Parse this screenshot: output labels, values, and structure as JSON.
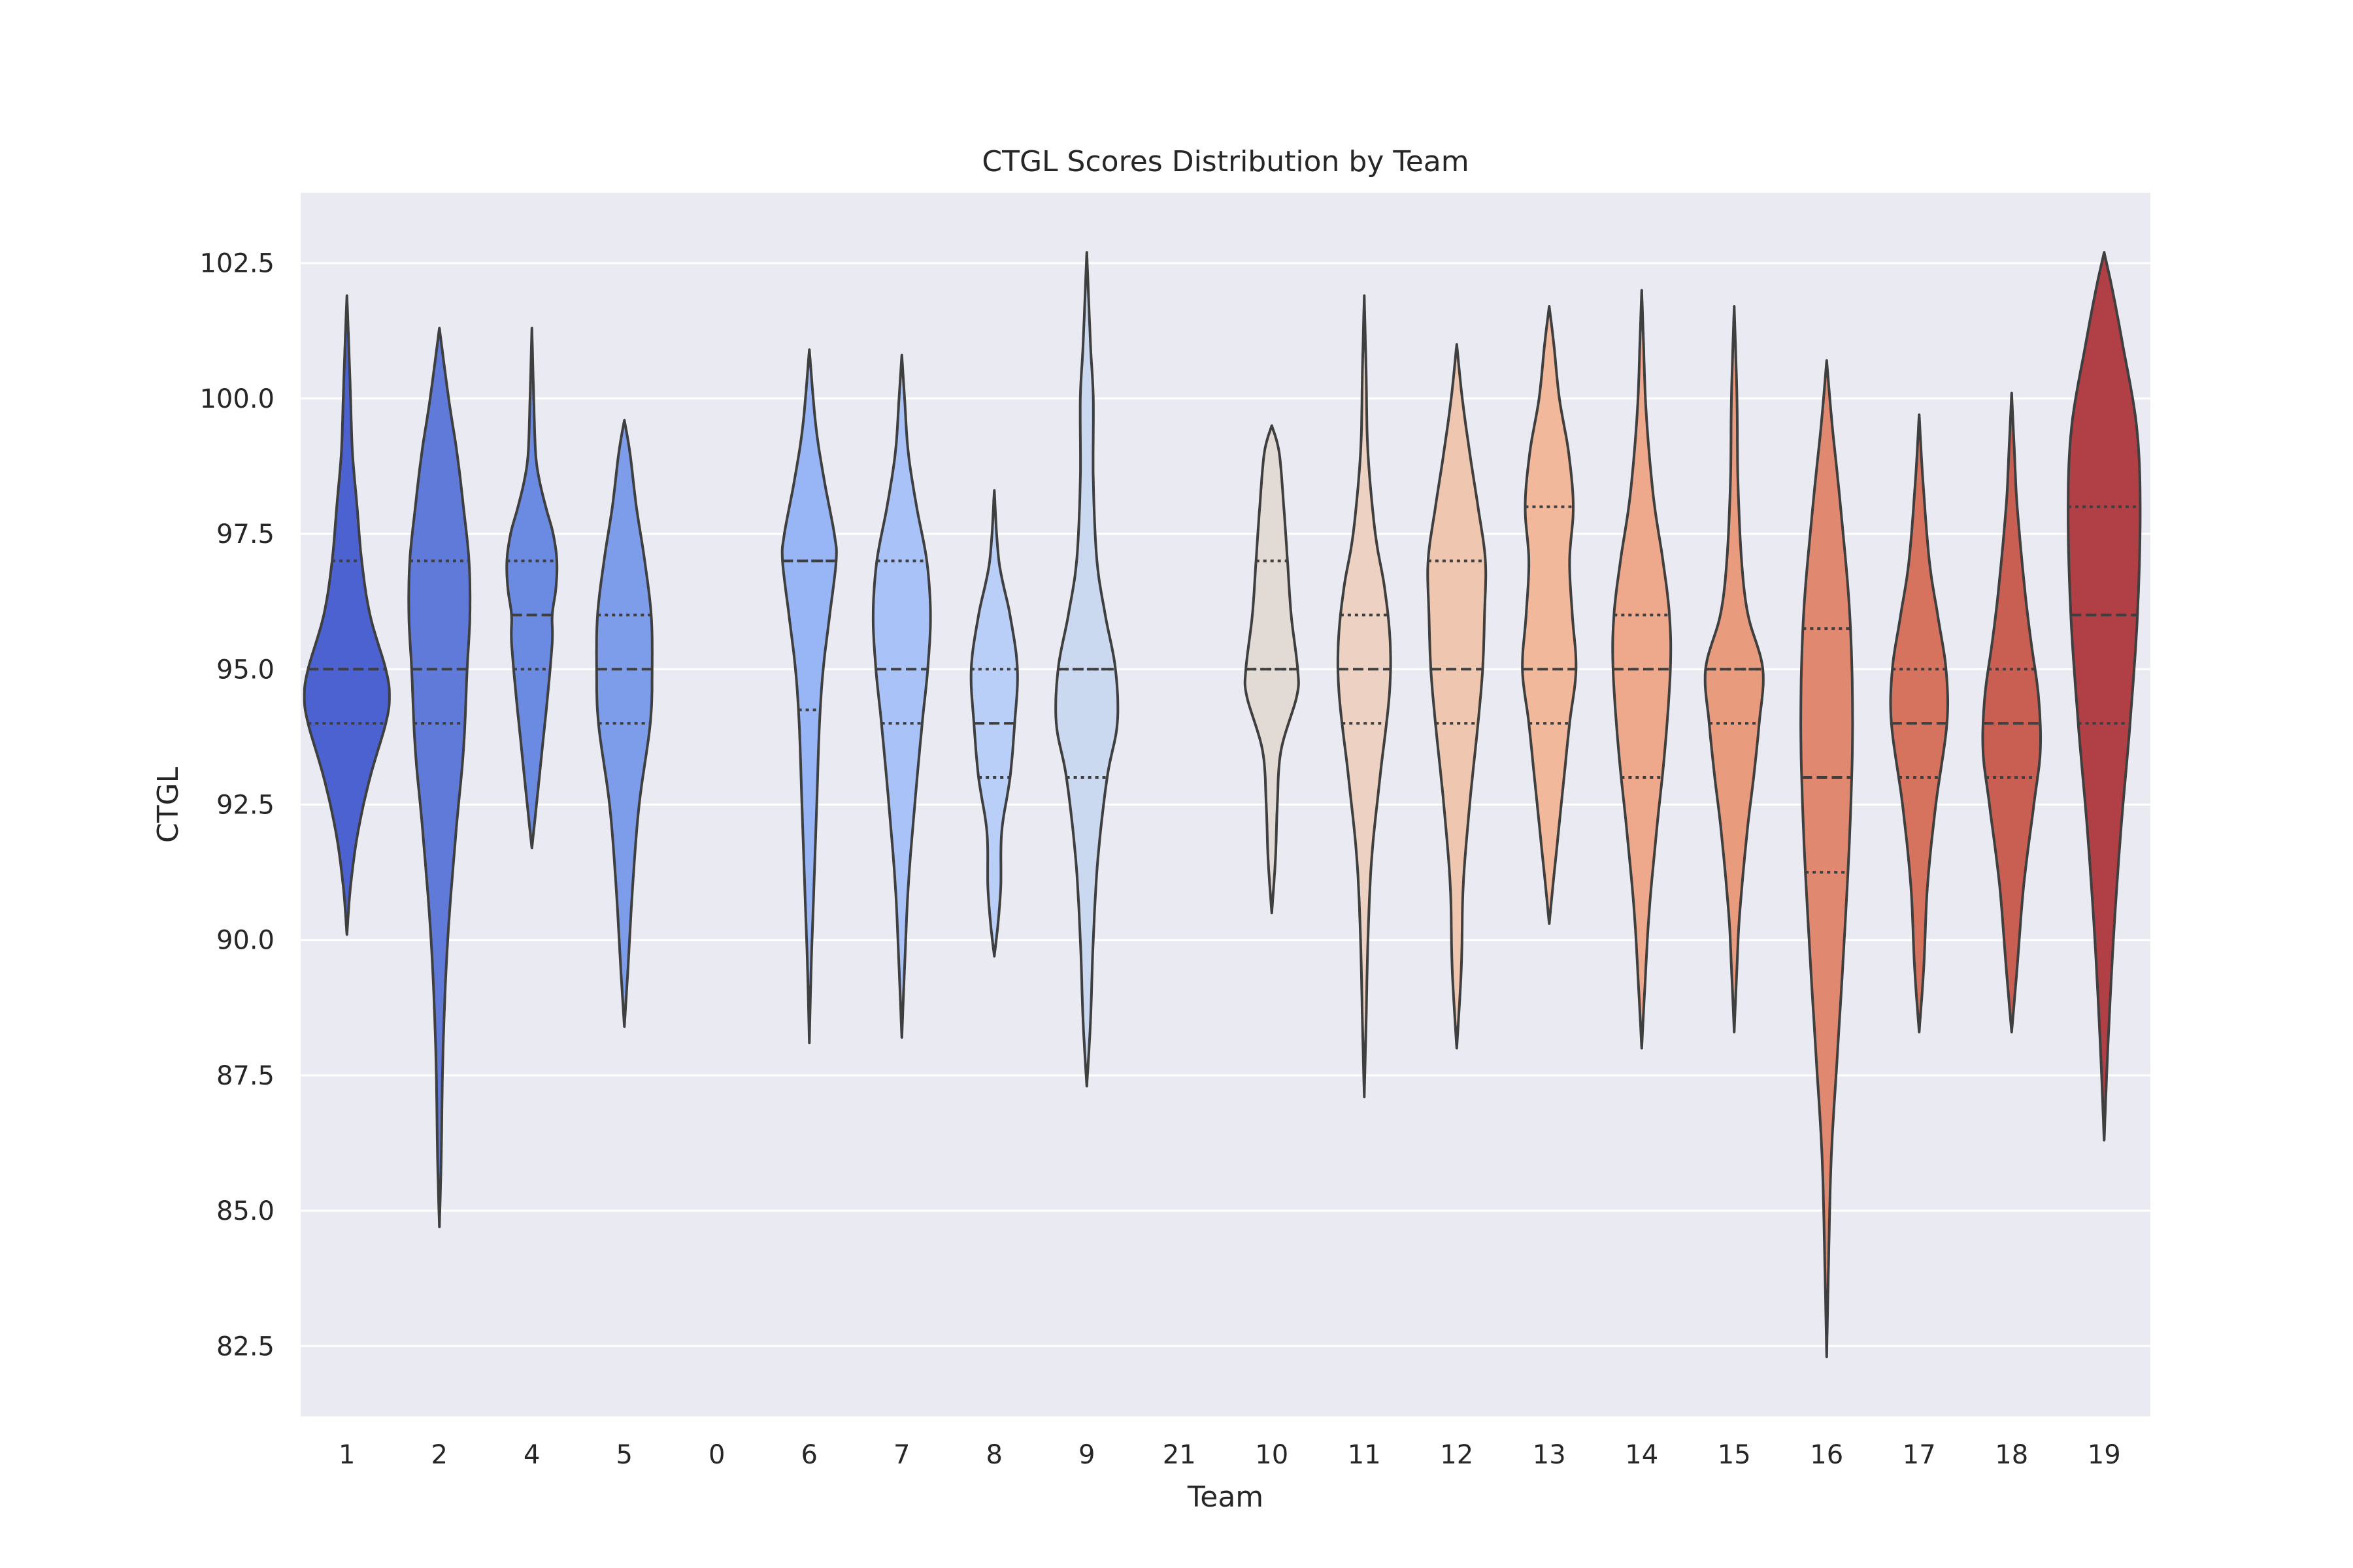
{
  "chart_data": {
    "type": "violin",
    "title": "CTGL Scores Distribution by Team",
    "xlabel": "Team",
    "ylabel": "CTGL",
    "ylim": [
      81.2,
      103.8
    ],
    "y_ticks": [
      82.5,
      85.0,
      87.5,
      90.0,
      92.5,
      95.0,
      97.5,
      100.0,
      102.5
    ],
    "y_tick_labels": [
      "82.5",
      "85.0",
      "87.5",
      "90.0",
      "92.5",
      "95.0",
      "97.5",
      "100.0",
      "102.5"
    ],
    "categories": [
      "1",
      "2",
      "4",
      "5",
      "0",
      "6",
      "7",
      "8",
      "9",
      "21",
      "10",
      "11",
      "12",
      "13",
      "14",
      "15",
      "16",
      "17",
      "18",
      "19"
    ],
    "grid": true,
    "legend": "none",
    "palette": "coolwarm",
    "background": "#eaeaf2",
    "series": [
      {
        "team": "1",
        "color": "#4b62d0",
        "min": 90.1,
        "max": 101.9,
        "q1": 94.0,
        "median": 95.0,
        "q3": 97.0,
        "profile": [
          [
            90.1,
            0.0
          ],
          [
            91.0,
            0.04
          ],
          [
            92.0,
            0.12
          ],
          [
            93.0,
            0.25
          ],
          [
            94.0,
            0.42
          ],
          [
            94.5,
            0.46
          ],
          [
            95.0,
            0.42
          ],
          [
            96.0,
            0.25
          ],
          [
            97.0,
            0.16
          ],
          [
            98.0,
            0.11
          ],
          [
            99.0,
            0.06
          ],
          [
            100.0,
            0.04
          ],
          [
            101.0,
            0.02
          ],
          [
            101.9,
            0.0
          ]
        ]
      },
      {
        "team": "2",
        "color": "#5f7ad9",
        "min": 84.7,
        "max": 101.3,
        "q1": 94.0,
        "median": 95.0,
        "q3": 97.0,
        "profile": [
          [
            84.7,
            0.0
          ],
          [
            86.0,
            0.02
          ],
          [
            88.0,
            0.04
          ],
          [
            90.0,
            0.09
          ],
          [
            92.0,
            0.18
          ],
          [
            93.5,
            0.26
          ],
          [
            95.0,
            0.3
          ],
          [
            96.0,
            0.33
          ],
          [
            97.0,
            0.32
          ],
          [
            98.0,
            0.26
          ],
          [
            99.0,
            0.19
          ],
          [
            100.0,
            0.1
          ],
          [
            101.3,
            0.0
          ]
        ]
      },
      {
        "team": "4",
        "color": "#6b8ae2",
        "min": 91.7,
        "max": 101.3,
        "q1": 95.0,
        "median": 96.0,
        "q3": 97.0,
        "profile": [
          [
            91.7,
            0.0
          ],
          [
            92.5,
            0.05
          ],
          [
            93.5,
            0.11
          ],
          [
            94.5,
            0.17
          ],
          [
            95.5,
            0.22
          ],
          [
            96.0,
            0.22
          ],
          [
            96.5,
            0.26
          ],
          [
            97.0,
            0.27
          ],
          [
            97.5,
            0.23
          ],
          [
            98.0,
            0.15
          ],
          [
            98.5,
            0.08
          ],
          [
            99.0,
            0.04
          ],
          [
            100.0,
            0.02
          ],
          [
            101.3,
            0.0
          ]
        ]
      },
      {
        "team": "5",
        "color": "#7d9cea",
        "min": 88.4,
        "max": 99.6,
        "q1": 94.0,
        "median": 95.0,
        "q3": 96.0,
        "profile": [
          [
            88.4,
            0.0
          ],
          [
            89.5,
            0.04
          ],
          [
            91.0,
            0.09
          ],
          [
            92.5,
            0.16
          ],
          [
            94.0,
            0.28
          ],
          [
            95.0,
            0.3
          ],
          [
            96.0,
            0.29
          ],
          [
            97.0,
            0.22
          ],
          [
            98.0,
            0.13
          ],
          [
            99.0,
            0.06
          ],
          [
            99.6,
            0.0
          ]
        ]
      },
      {
        "team": "0",
        "empty": true
      },
      {
        "team": "6",
        "color": "#98b5f5",
        "min": 88.1,
        "max": 100.9,
        "q1": 94.25,
        "median": 97.0,
        "q3": 97.0,
        "profile": [
          [
            88.1,
            0.0
          ],
          [
            89.5,
            0.02
          ],
          [
            91.0,
            0.05
          ],
          [
            92.5,
            0.08
          ],
          [
            94.0,
            0.11
          ],
          [
            95.0,
            0.15
          ],
          [
            96.0,
            0.22
          ],
          [
            97.0,
            0.29
          ],
          [
            97.5,
            0.27
          ],
          [
            98.5,
            0.16
          ],
          [
            99.5,
            0.07
          ],
          [
            100.9,
            0.0
          ]
        ]
      },
      {
        "team": "7",
        "color": "#a9c2f7",
        "min": 88.2,
        "max": 100.8,
        "q1": 94.0,
        "median": 95.0,
        "q3": 97.0,
        "profile": [
          [
            88.2,
            0.0
          ],
          [
            89.5,
            0.03
          ],
          [
            91.0,
            0.07
          ],
          [
            92.5,
            0.14
          ],
          [
            94.0,
            0.22
          ],
          [
            95.0,
            0.28
          ],
          [
            96.0,
            0.31
          ],
          [
            97.0,
            0.27
          ],
          [
            98.0,
            0.16
          ],
          [
            99.0,
            0.07
          ],
          [
            100.0,
            0.03
          ],
          [
            100.8,
            0.0
          ]
        ]
      },
      {
        "team": "8",
        "color": "#bacff7",
        "min": 89.7,
        "max": 98.3,
        "q1": 93.0,
        "median": 94.0,
        "q3": 95.0,
        "profile": [
          [
            89.7,
            0.0
          ],
          [
            90.3,
            0.04
          ],
          [
            91.0,
            0.07
          ],
          [
            92.0,
            0.08
          ],
          [
            93.0,
            0.17
          ],
          [
            94.0,
            0.22
          ],
          [
            95.0,
            0.25
          ],
          [
            96.0,
            0.17
          ],
          [
            97.0,
            0.05
          ],
          [
            98.3,
            0.0
          ]
        ]
      },
      {
        "team": "9",
        "color": "#cad8f0",
        "min": 87.3,
        "max": 102.7,
        "q1": 93.0,
        "median": 95.0,
        "q3": 95.0,
        "profile": [
          [
            87.3,
            0.0
          ],
          [
            88.5,
            0.04
          ],
          [
            90.0,
            0.07
          ],
          [
            91.5,
            0.12
          ],
          [
            93.0,
            0.22
          ],
          [
            94.0,
            0.33
          ],
          [
            95.0,
            0.31
          ],
          [
            96.0,
            0.2
          ],
          [
            97.0,
            0.11
          ],
          [
            98.5,
            0.07
          ],
          [
            100.0,
            0.07
          ],
          [
            101.0,
            0.04
          ],
          [
            102.7,
            0.0
          ]
        ]
      },
      {
        "team": "21",
        "empty": true
      },
      {
        "team": "10",
        "color": "#e2dad5",
        "min": 90.5,
        "max": 99.5,
        "q1": 95.0,
        "median": 95.0,
        "q3": 97.0,
        "profile": [
          [
            90.5,
            0.0
          ],
          [
            91.5,
            0.04
          ],
          [
            92.5,
            0.06
          ],
          [
            93.5,
            0.1
          ],
          [
            94.5,
            0.27
          ],
          [
            95.0,
            0.28
          ],
          [
            96.0,
            0.21
          ],
          [
            97.0,
            0.17
          ],
          [
            98.0,
            0.13
          ],
          [
            99.0,
            0.08
          ],
          [
            99.5,
            0.0
          ]
        ]
      },
      {
        "team": "11",
        "color": "#edd1c2",
        "min": 87.1,
        "max": 101.9,
        "q1": 94.0,
        "median": 95.0,
        "q3": 96.0,
        "profile": [
          [
            87.1,
            0.0
          ],
          [
            88.5,
            0.02
          ],
          [
            90.0,
            0.04
          ],
          [
            91.5,
            0.08
          ],
          [
            93.0,
            0.17
          ],
          [
            94.5,
            0.27
          ],
          [
            95.5,
            0.28
          ],
          [
            96.5,
            0.22
          ],
          [
            97.5,
            0.12
          ],
          [
            99.0,
            0.04
          ],
          [
            100.5,
            0.02
          ],
          [
            101.9,
            0.0
          ]
        ]
      },
      {
        "team": "12",
        "color": "#efc6b0",
        "min": 88.0,
        "max": 101.0,
        "q1": 94.0,
        "median": 95.0,
        "q3": 97.0,
        "profile": [
          [
            88.0,
            0.0
          ],
          [
            89.5,
            0.05
          ],
          [
            91.0,
            0.07
          ],
          [
            92.5,
            0.14
          ],
          [
            94.0,
            0.23
          ],
          [
            95.0,
            0.28
          ],
          [
            96.0,
            0.3
          ],
          [
            97.0,
            0.31
          ],
          [
            98.0,
            0.23
          ],
          [
            99.0,
            0.14
          ],
          [
            100.0,
            0.06
          ],
          [
            101.0,
            0.0
          ]
        ]
      },
      {
        "team": "13",
        "color": "#f2b89b",
        "min": 90.3,
        "max": 101.7,
        "q1": 94.0,
        "median": 95.0,
        "q3": 98.0,
        "profile": [
          [
            90.3,
            0.0
          ],
          [
            91.0,
            0.04
          ],
          [
            92.0,
            0.1
          ],
          [
            93.0,
            0.16
          ],
          [
            94.0,
            0.22
          ],
          [
            95.0,
            0.29
          ],
          [
            96.0,
            0.25
          ],
          [
            97.0,
            0.22
          ],
          [
            98.0,
            0.26
          ],
          [
            99.0,
            0.21
          ],
          [
            100.0,
            0.11
          ],
          [
            101.0,
            0.05
          ],
          [
            101.7,
            0.0
          ]
        ]
      },
      {
        "team": "14",
        "color": "#eea98c",
        "min": 88.0,
        "max": 102.0,
        "q1": 93.0,
        "median": 95.0,
        "q3": 96.0,
        "profile": [
          [
            88.0,
            0.0
          ],
          [
            89.0,
            0.03
          ],
          [
            90.5,
            0.08
          ],
          [
            92.0,
            0.16
          ],
          [
            93.5,
            0.25
          ],
          [
            95.0,
            0.31
          ],
          [
            96.0,
            0.3
          ],
          [
            97.0,
            0.23
          ],
          [
            98.0,
            0.14
          ],
          [
            99.0,
            0.08
          ],
          [
            100.0,
            0.04
          ],
          [
            101.0,
            0.02
          ],
          [
            102.0,
            0.0
          ]
        ]
      },
      {
        "team": "15",
        "color": "#e89b7d",
        "min": 88.3,
        "max": 101.7,
        "q1": 94.0,
        "median": 95.0,
        "q3": 95.0,
        "profile": [
          [
            88.3,
            0.0
          ],
          [
            89.5,
            0.03
          ],
          [
            90.5,
            0.06
          ],
          [
            92.0,
            0.14
          ],
          [
            93.0,
            0.21
          ],
          [
            94.0,
            0.27
          ],
          [
            95.0,
            0.31
          ],
          [
            96.0,
            0.15
          ],
          [
            97.0,
            0.08
          ],
          [
            98.5,
            0.04
          ],
          [
            100.0,
            0.03
          ],
          [
            101.7,
            0.0
          ]
        ]
      },
      {
        "team": "16",
        "color": "#e08870",
        "min": 82.3,
        "max": 100.7,
        "q1": 91.25,
        "median": 93.0,
        "q3": 95.75,
        "profile": [
          [
            82.3,
            0.0
          ],
          [
            84.0,
            0.02
          ],
          [
            86.0,
            0.05
          ],
          [
            88.0,
            0.12
          ],
          [
            90.0,
            0.19
          ],
          [
            92.0,
            0.25
          ],
          [
            94.0,
            0.28
          ],
          [
            96.0,
            0.25
          ],
          [
            98.0,
            0.15
          ],
          [
            99.5,
            0.06
          ],
          [
            100.7,
            0.0
          ]
        ]
      },
      {
        "team": "17",
        "color": "#d6735f",
        "min": 88.3,
        "max": 99.7,
        "q1": 93.0,
        "median": 94.0,
        "q3": 95.0,
        "profile": [
          [
            88.3,
            0.0
          ],
          [
            89.5,
            0.05
          ],
          [
            91.0,
            0.09
          ],
          [
            92.5,
            0.18
          ],
          [
            94.0,
            0.3
          ],
          [
            95.0,
            0.29
          ],
          [
            96.0,
            0.2
          ],
          [
            97.0,
            0.11
          ],
          [
            98.5,
            0.04
          ],
          [
            99.7,
            0.0
          ]
        ]
      },
      {
        "team": "18",
        "color": "#c95e52",
        "min": 88.3,
        "max": 100.1,
        "q1": 93.0,
        "median": 94.0,
        "q3": 95.0,
        "profile": [
          [
            88.3,
            0.0
          ],
          [
            89.5,
            0.06
          ],
          [
            91.0,
            0.13
          ],
          [
            92.5,
            0.24
          ],
          [
            93.5,
            0.31
          ],
          [
            94.5,
            0.29
          ],
          [
            95.5,
            0.21
          ],
          [
            96.5,
            0.14
          ],
          [
            98.0,
            0.06
          ],
          [
            99.0,
            0.03
          ],
          [
            100.1,
            0.0
          ]
        ]
      },
      {
        "team": "19",
        "color": "#b03f46",
        "min": 86.3,
        "max": 102.7,
        "q1": 94.0,
        "median": 96.0,
        "q3": 98.0,
        "profile": [
          [
            86.3,
            0.0
          ],
          [
            88.0,
            0.04
          ],
          [
            90.0,
            0.1
          ],
          [
            92.0,
            0.18
          ],
          [
            94.0,
            0.28
          ],
          [
            96.0,
            0.36
          ],
          [
            98.0,
            0.39
          ],
          [
            99.5,
            0.35
          ],
          [
            101.0,
            0.2
          ],
          [
            102.0,
            0.09
          ],
          [
            102.7,
            0.0
          ]
        ]
      }
    ]
  }
}
